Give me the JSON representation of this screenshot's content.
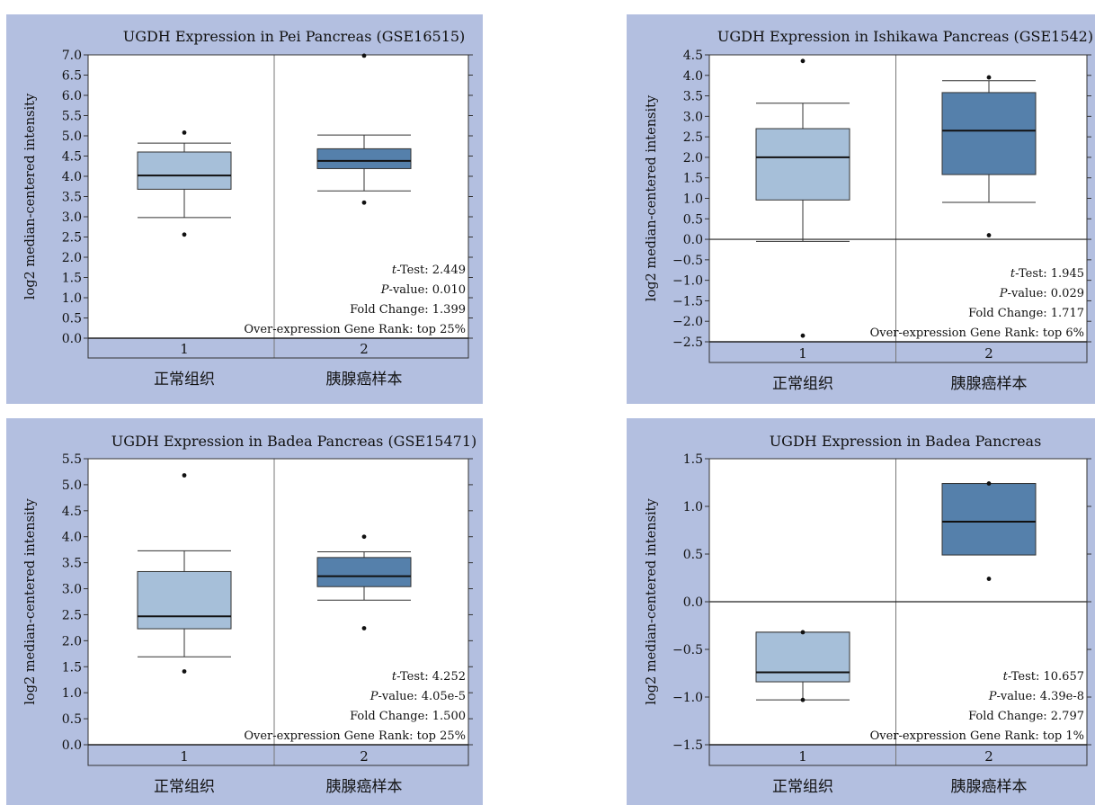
{
  "chart_data": [
    {
      "type": "box",
      "title": "UGDH Expression in Pei Pancreas (GSE16515)",
      "ylabel": "log2 median-centered intensity",
      "ylim": [
        0.0,
        7.0
      ],
      "yticks": [
        0.0,
        0.5,
        1.0,
        1.5,
        2.0,
        2.5,
        3.0,
        3.5,
        4.0,
        4.5,
        5.0,
        5.5,
        6.0,
        6.5,
        7.0
      ],
      "ytick_labels": [
        "0.0",
        "0.5",
        "1.0",
        "1.5",
        "2.0",
        "2.5",
        "3.0",
        "3.5",
        "4.0",
        "4.5",
        "5.0",
        "5.5",
        "6.0",
        "6.5",
        "7.0"
      ],
      "categories": [
        "1",
        "2"
      ],
      "category_labels": [
        "正常组织",
        "胰腺癌样本"
      ],
      "boxes": [
        {
          "q1": 3.68,
          "median": 4.02,
          "q3": 4.6,
          "whisker_low": 2.98,
          "whisker_high": 4.82,
          "outliers": [
            5.08,
            2.56
          ],
          "color": "#a6bfd9"
        },
        {
          "q1": 4.19,
          "median": 4.38,
          "q3": 4.68,
          "whisker_low": 3.64,
          "whisker_high": 5.02,
          "outliers": [
            6.98,
            3.35
          ],
          "color": "#5580ab"
        }
      ],
      "stats": {
        "t_label": "t",
        "t_test": "-Test: 2.449",
        "p_label": "P",
        "p_value": "-value: 0.010",
        "fold_change": "Fold Change: 1.399",
        "rank": "Over-expression Gene Rank: top 25%"
      }
    },
    {
      "type": "box",
      "title": "UGDH Expression in Ishikawa Pancreas (GSE1542)",
      "ylabel": "log2 median-centered intensity",
      "ylim": [
        -2.5,
        4.5
      ],
      "yticks": [
        -2.5,
        -2.0,
        -1.5,
        -1.0,
        -0.5,
        0.0,
        0.5,
        1.0,
        1.5,
        2.0,
        2.5,
        3.0,
        3.5,
        4.0,
        4.5
      ],
      "ytick_labels": [
        "−2.5",
        "−2.0",
        "−1.5",
        "−1.0",
        "−0.5",
        "0.0",
        "0.5",
        "1.0",
        "1.5",
        "2.0",
        "2.5",
        "3.0",
        "3.5",
        "4.0",
        "4.5"
      ],
      "categories": [
        "1",
        "2"
      ],
      "category_labels": [
        "正常组织",
        "胰腺癌样本"
      ],
      "boxes": [
        {
          "q1": 0.96,
          "median": 2.0,
          "q3": 2.7,
          "whisker_low": -0.05,
          "whisker_high": 3.32,
          "outliers": [
            4.35,
            -2.35
          ],
          "color": "#a6bfd9"
        },
        {
          "q1": 1.58,
          "median": 2.65,
          "q3": 3.58,
          "whisker_low": 0.9,
          "whisker_high": 3.87,
          "outliers": [
            3.95,
            0.1
          ],
          "color": "#5580ab"
        }
      ],
      "stats": {
        "t_label": "t",
        "t_test": "-Test: 1.945",
        "p_label": "P",
        "p_value": "-value: 0.029",
        "fold_change": "Fold Change: 1.717",
        "rank": "Over-expression Gene Rank: top 6%"
      }
    },
    {
      "type": "box",
      "title": "UGDH Expression in Badea Pancreas (GSE15471)",
      "ylabel": "log2 median-centered intensity",
      "ylim": [
        0.0,
        5.5
      ],
      "yticks": [
        0.0,
        0.5,
        1.0,
        1.5,
        2.0,
        2.5,
        3.0,
        3.5,
        4.0,
        4.5,
        5.0,
        5.5
      ],
      "ytick_labels": [
        "0.0",
        "0.5",
        "1.0",
        "1.5",
        "2.0",
        "2.5",
        "3.0",
        "3.5",
        "4.0",
        "4.5",
        "5.0",
        "5.5"
      ],
      "categories": [
        "1",
        "2"
      ],
      "category_labels": [
        "正常组织",
        "胰腺癌样本"
      ],
      "boxes": [
        {
          "q1": 2.23,
          "median": 2.47,
          "q3": 3.33,
          "whisker_low": 1.69,
          "whisker_high": 3.73,
          "outliers": [
            5.18,
            1.41
          ],
          "color": "#a6bfd9"
        },
        {
          "q1": 3.04,
          "median": 3.24,
          "q3": 3.6,
          "whisker_low": 2.78,
          "whisker_high": 3.71,
          "outliers": [
            4.0,
            2.24
          ],
          "color": "#5580ab"
        }
      ],
      "stats": {
        "t_label": "t",
        "t_test": "-Test: 4.252",
        "p_label": "P",
        "p_value": "-value: 4.05e-5",
        "fold_change": "Fold Change: 1.500",
        "rank": "Over-expression Gene Rank: top 25%"
      }
    },
    {
      "type": "box",
      "title": "UGDH Expression in Badea Pancreas",
      "ylabel": "log2 median-centered intensity",
      "ylim": [
        -1.5,
        1.5
      ],
      "yticks": [
        -1.5,
        -1.0,
        -0.5,
        0.0,
        0.5,
        1.0,
        1.5
      ],
      "ytick_labels": [
        "−1.5",
        "−1.0",
        "−0.5",
        "0.0",
        "0.5",
        "1.0",
        "1.5"
      ],
      "categories": [
        "1",
        "2"
      ],
      "category_labels": [
        "正常组织",
        "胰腺癌样本"
      ],
      "boxes": [
        {
          "q1": -0.84,
          "median": -0.74,
          "q3": -0.32,
          "whisker_low": -1.03,
          "whisker_high": -0.32,
          "outliers": [
            -0.32,
            -1.03
          ],
          "color": "#a6bfd9"
        },
        {
          "q1": 0.49,
          "median": 0.84,
          "q3": 1.24,
          "whisker_low": 0.49,
          "whisker_high": 1.24,
          "outliers": [
            1.24,
            0.24
          ],
          "color": "#5580ab"
        }
      ],
      "stats": {
        "t_label": "t",
        "t_test": "-Test: 10.657",
        "p_label": "P",
        "p_value": "-value: 4.39e-8",
        "fold_change": "Fold Change: 2.797",
        "rank": "Over-expression Gene Rank: top 1%"
      }
    }
  ],
  "style": {
    "panel_background": "#b3bfe0",
    "plot_background": "#ffffff",
    "normal_box_color": "#a6bfd9",
    "cancer_box_color": "#5580ab"
  }
}
